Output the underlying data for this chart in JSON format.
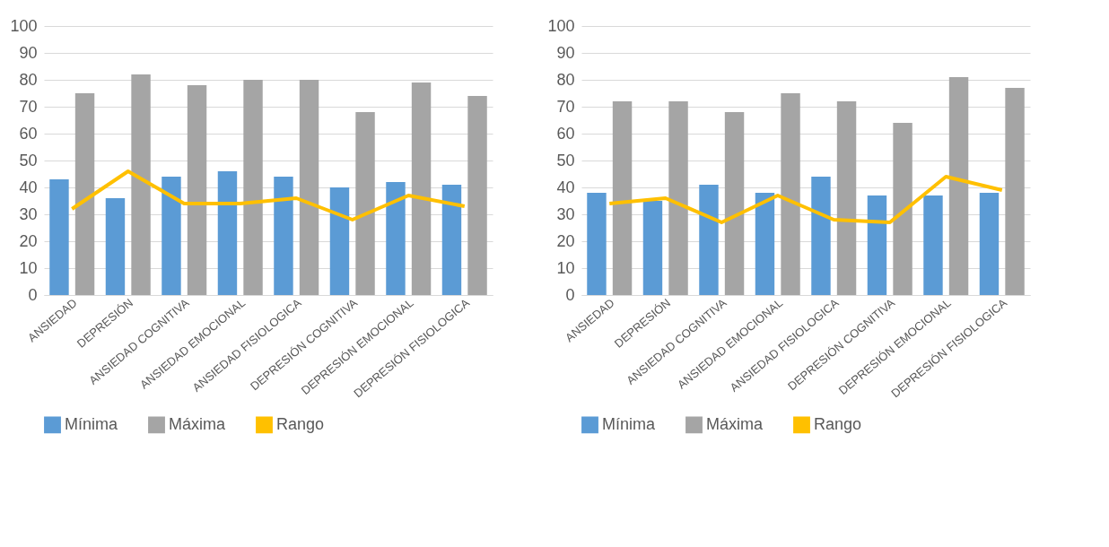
{
  "chart_data": [
    {
      "type": "bar",
      "categories": [
        "ANSIEDAD",
        "DEPRESIÓN",
        "ANSIEDAD COGNITIVA",
        "ANSIEDAD EMOCIONAL",
        "ANSIEDAD FISIOLOGICA",
        "DEPRESIÓN COGNITIVA",
        "DEPRESIÓN EMOCIONAL",
        "DEPRESIÓN FISIOLOGICA"
      ],
      "series": [
        {
          "name": "Mínima",
          "color": "#5b9bd5",
          "values": [
            43,
            36,
            44,
            46,
            44,
            40,
            42,
            41
          ]
        },
        {
          "name": "Máxima",
          "color": "#a5a5a5",
          "values": [
            75,
            82,
            78,
            80,
            80,
            68,
            79,
            74
          ]
        },
        {
          "name": "Rango",
          "type": "line",
          "color": "#ffc000",
          "values": [
            32,
            46,
            34,
            34,
            36,
            28,
            37,
            33
          ]
        }
      ],
      "ylim": [
        0,
        100
      ],
      "yticks": [
        0,
        10,
        20,
        30,
        40,
        50,
        60,
        70,
        80,
        90,
        100
      ],
      "grid": "y",
      "legend": "bottom",
      "marker": "none"
    },
    {
      "type": "bar",
      "categories": [
        "ANSIEDAD",
        "DEPRESIÓN",
        "ANSIEDAD COGNITIVA",
        "ANSIEDAD EMOCIONAL",
        "ANSIEDAD FISIOLOGICA",
        "DEPRESIÓN COGNITIVA",
        "DEPRESIÓN EMOCIONAL",
        "DEPRESIÓN FISIOLOGICA"
      ],
      "series": [
        {
          "name": "Mínima",
          "color": "#5b9bd5",
          "values": [
            38,
            35,
            41,
            38,
            44,
            37,
            37,
            38
          ]
        },
        {
          "name": "Máxima",
          "color": "#a5a5a5",
          "values": [
            72,
            72,
            68,
            75,
            72,
            64,
            81,
            77
          ]
        },
        {
          "name": "Rango",
          "type": "line",
          "color": "#ffc000",
          "values": [
            34,
            36,
            27,
            37,
            28,
            27,
            44,
            39
          ]
        }
      ],
      "ylim": [
        0,
        100
      ],
      "yticks": [
        0,
        10,
        20,
        30,
        40,
        50,
        60,
        70,
        80,
        90,
        100
      ],
      "grid": "y",
      "legend": "bottom",
      "marker": "none"
    }
  ]
}
